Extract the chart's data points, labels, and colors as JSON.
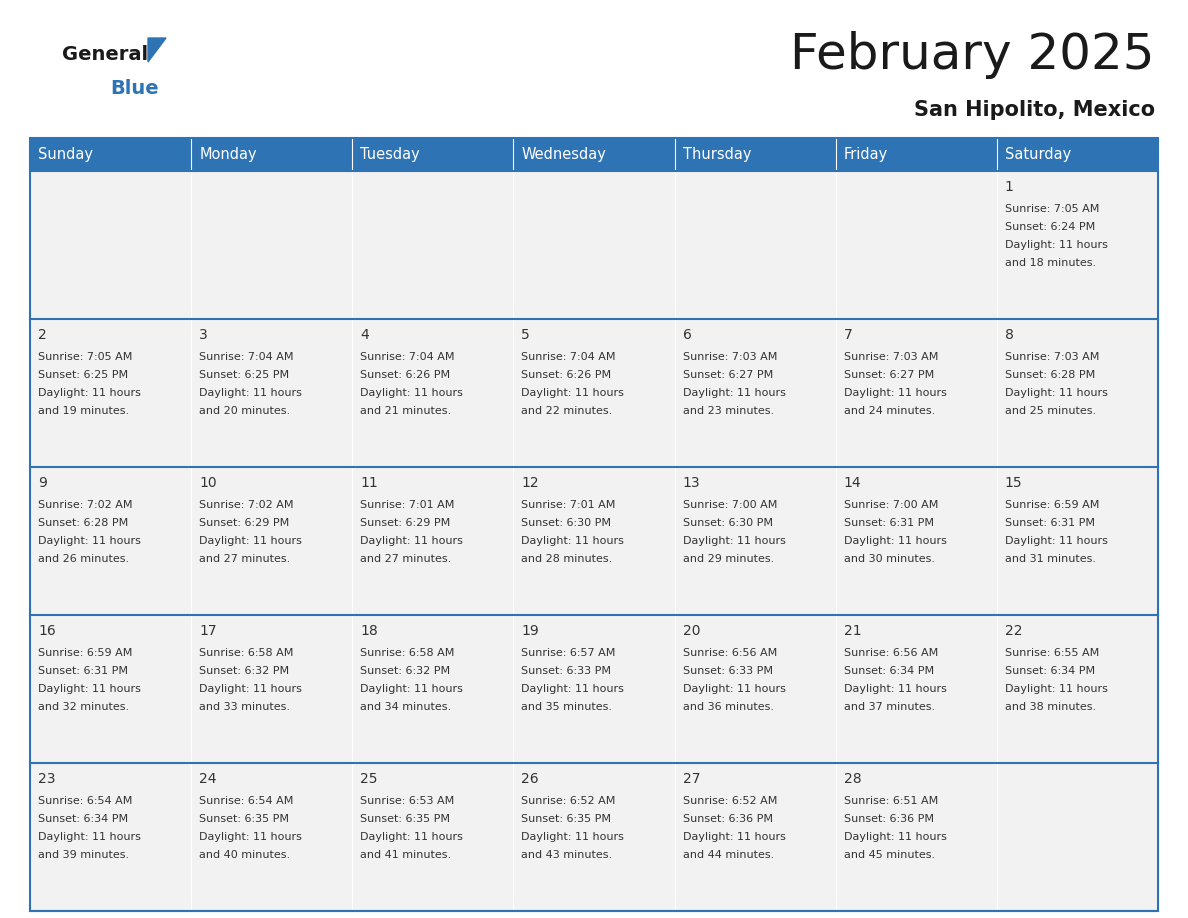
{
  "title": "February 2025",
  "subtitle": "San Hipolito, Mexico",
  "header_bg_color": "#2e74b5",
  "header_text_color": "#ffffff",
  "cell_bg_color": "#f2f2f2",
  "cell_text_color": "#333333",
  "border_color": "#2e74b5",
  "grid_color": "#aaaaaa",
  "days_of_week": [
    "Sunday",
    "Monday",
    "Tuesday",
    "Wednesday",
    "Thursday",
    "Friday",
    "Saturday"
  ],
  "calendar_data": [
    [
      null,
      null,
      null,
      null,
      null,
      null,
      {
        "day": 1,
        "sunrise": "7:05 AM",
        "sunset": "6:24 PM",
        "daylight": "11 hours and 18 minutes."
      }
    ],
    [
      {
        "day": 2,
        "sunrise": "7:05 AM",
        "sunset": "6:25 PM",
        "daylight": "11 hours and 19 minutes."
      },
      {
        "day": 3,
        "sunrise": "7:04 AM",
        "sunset": "6:25 PM",
        "daylight": "11 hours and 20 minutes."
      },
      {
        "day": 4,
        "sunrise": "7:04 AM",
        "sunset": "6:26 PM",
        "daylight": "11 hours and 21 minutes."
      },
      {
        "day": 5,
        "sunrise": "7:04 AM",
        "sunset": "6:26 PM",
        "daylight": "11 hours and 22 minutes."
      },
      {
        "day": 6,
        "sunrise": "7:03 AM",
        "sunset": "6:27 PM",
        "daylight": "11 hours and 23 minutes."
      },
      {
        "day": 7,
        "sunrise": "7:03 AM",
        "sunset": "6:27 PM",
        "daylight": "11 hours and 24 minutes."
      },
      {
        "day": 8,
        "sunrise": "7:03 AM",
        "sunset": "6:28 PM",
        "daylight": "11 hours and 25 minutes."
      }
    ],
    [
      {
        "day": 9,
        "sunrise": "7:02 AM",
        "sunset": "6:28 PM",
        "daylight": "11 hours and 26 minutes."
      },
      {
        "day": 10,
        "sunrise": "7:02 AM",
        "sunset": "6:29 PM",
        "daylight": "11 hours and 27 minutes."
      },
      {
        "day": 11,
        "sunrise": "7:01 AM",
        "sunset": "6:29 PM",
        "daylight": "11 hours and 27 minutes."
      },
      {
        "day": 12,
        "sunrise": "7:01 AM",
        "sunset": "6:30 PM",
        "daylight": "11 hours and 28 minutes."
      },
      {
        "day": 13,
        "sunrise": "7:00 AM",
        "sunset": "6:30 PM",
        "daylight": "11 hours and 29 minutes."
      },
      {
        "day": 14,
        "sunrise": "7:00 AM",
        "sunset": "6:31 PM",
        "daylight": "11 hours and 30 minutes."
      },
      {
        "day": 15,
        "sunrise": "6:59 AM",
        "sunset": "6:31 PM",
        "daylight": "11 hours and 31 minutes."
      }
    ],
    [
      {
        "day": 16,
        "sunrise": "6:59 AM",
        "sunset": "6:31 PM",
        "daylight": "11 hours and 32 minutes."
      },
      {
        "day": 17,
        "sunrise": "6:58 AM",
        "sunset": "6:32 PM",
        "daylight": "11 hours and 33 minutes."
      },
      {
        "day": 18,
        "sunrise": "6:58 AM",
        "sunset": "6:32 PM",
        "daylight": "11 hours and 34 minutes."
      },
      {
        "day": 19,
        "sunrise": "6:57 AM",
        "sunset": "6:33 PM",
        "daylight": "11 hours and 35 minutes."
      },
      {
        "day": 20,
        "sunrise": "6:56 AM",
        "sunset": "6:33 PM",
        "daylight": "11 hours and 36 minutes."
      },
      {
        "day": 21,
        "sunrise": "6:56 AM",
        "sunset": "6:34 PM",
        "daylight": "11 hours and 37 minutes."
      },
      {
        "day": 22,
        "sunrise": "6:55 AM",
        "sunset": "6:34 PM",
        "daylight": "11 hours and 38 minutes."
      }
    ],
    [
      {
        "day": 23,
        "sunrise": "6:54 AM",
        "sunset": "6:34 PM",
        "daylight": "11 hours and 39 minutes."
      },
      {
        "day": 24,
        "sunrise": "6:54 AM",
        "sunset": "6:35 PM",
        "daylight": "11 hours and 40 minutes."
      },
      {
        "day": 25,
        "sunrise": "6:53 AM",
        "sunset": "6:35 PM",
        "daylight": "11 hours and 41 minutes."
      },
      {
        "day": 26,
        "sunrise": "6:52 AM",
        "sunset": "6:35 PM",
        "daylight": "11 hours and 43 minutes."
      },
      {
        "day": 27,
        "sunrise": "6:52 AM",
        "sunset": "6:36 PM",
        "daylight": "11 hours and 44 minutes."
      },
      {
        "day": 28,
        "sunrise": "6:51 AM",
        "sunset": "6:36 PM",
        "daylight": "11 hours and 45 minutes."
      },
      null
    ]
  ],
  "logo_general_color": "#1a1a1a",
  "logo_blue_color": "#2e74b5",
  "logo_triangle_color": "#2e74b5",
  "title_color": "#1a1a1a",
  "subtitle_color": "#1a1a1a"
}
